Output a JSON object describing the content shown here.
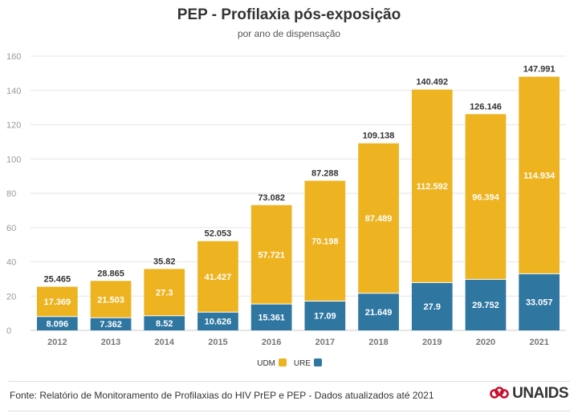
{
  "title": "PEP - Profilaxia pós-exposição",
  "subtitle": "por ano de dispensação",
  "source": "Fonte: Relatório de Monitoramento de Profilaxias do HIV PrEP e PEP - Dados atualizados até 2021",
  "logo_text": "UNAIDS",
  "colors": {
    "udm": "#EDB320",
    "ure": "#2F76A0",
    "grid": "#e6e6e6",
    "axis": "#999999"
  },
  "chart_data": {
    "type": "bar",
    "stacked": true,
    "categories": [
      "2012",
      "2013",
      "2014",
      "2015",
      "2016",
      "2017",
      "2018",
      "2019",
      "2020",
      "2021"
    ],
    "series": [
      {
        "name": "URE",
        "values": [
          8.096,
          7.362,
          8.52,
          10.626,
          15.361,
          17.09,
          21.649,
          27.9,
          29.752,
          33.057
        ],
        "labels": [
          "8.096",
          "7.362",
          "8.52",
          "10.626",
          "15.361",
          "17.09",
          "21.649",
          "27.9",
          "29.752",
          "33.057"
        ]
      },
      {
        "name": "UDM",
        "values": [
          17.369,
          21.503,
          27.3,
          41.427,
          57.721,
          70.198,
          87.489,
          112.592,
          96.394,
          114.934
        ],
        "labels": [
          "17.369",
          "21.503",
          "27.3",
          "41.427",
          "57.721",
          "70.198",
          "87.489",
          "112.592",
          "96.394",
          "114.934"
        ]
      }
    ],
    "totals": [
      25.465,
      28.865,
      35.82,
      52.053,
      73.082,
      87.288,
      109.138,
      140.492,
      126.146,
      147.991
    ],
    "total_labels": [
      "25.465",
      "28.865",
      "35.82",
      "52.053",
      "73.082",
      "87.288",
      "109.138",
      "140.492",
      "126.146",
      "147.991"
    ],
    "y_ticks": [
      "0",
      "20",
      "40",
      "60",
      "80",
      "100",
      "120",
      "140",
      "160"
    ],
    "ylim": [
      0,
      160
    ],
    "grid": true,
    "legend": {
      "position": "bottom-center",
      "order": [
        "UDM",
        "URE"
      ]
    }
  }
}
